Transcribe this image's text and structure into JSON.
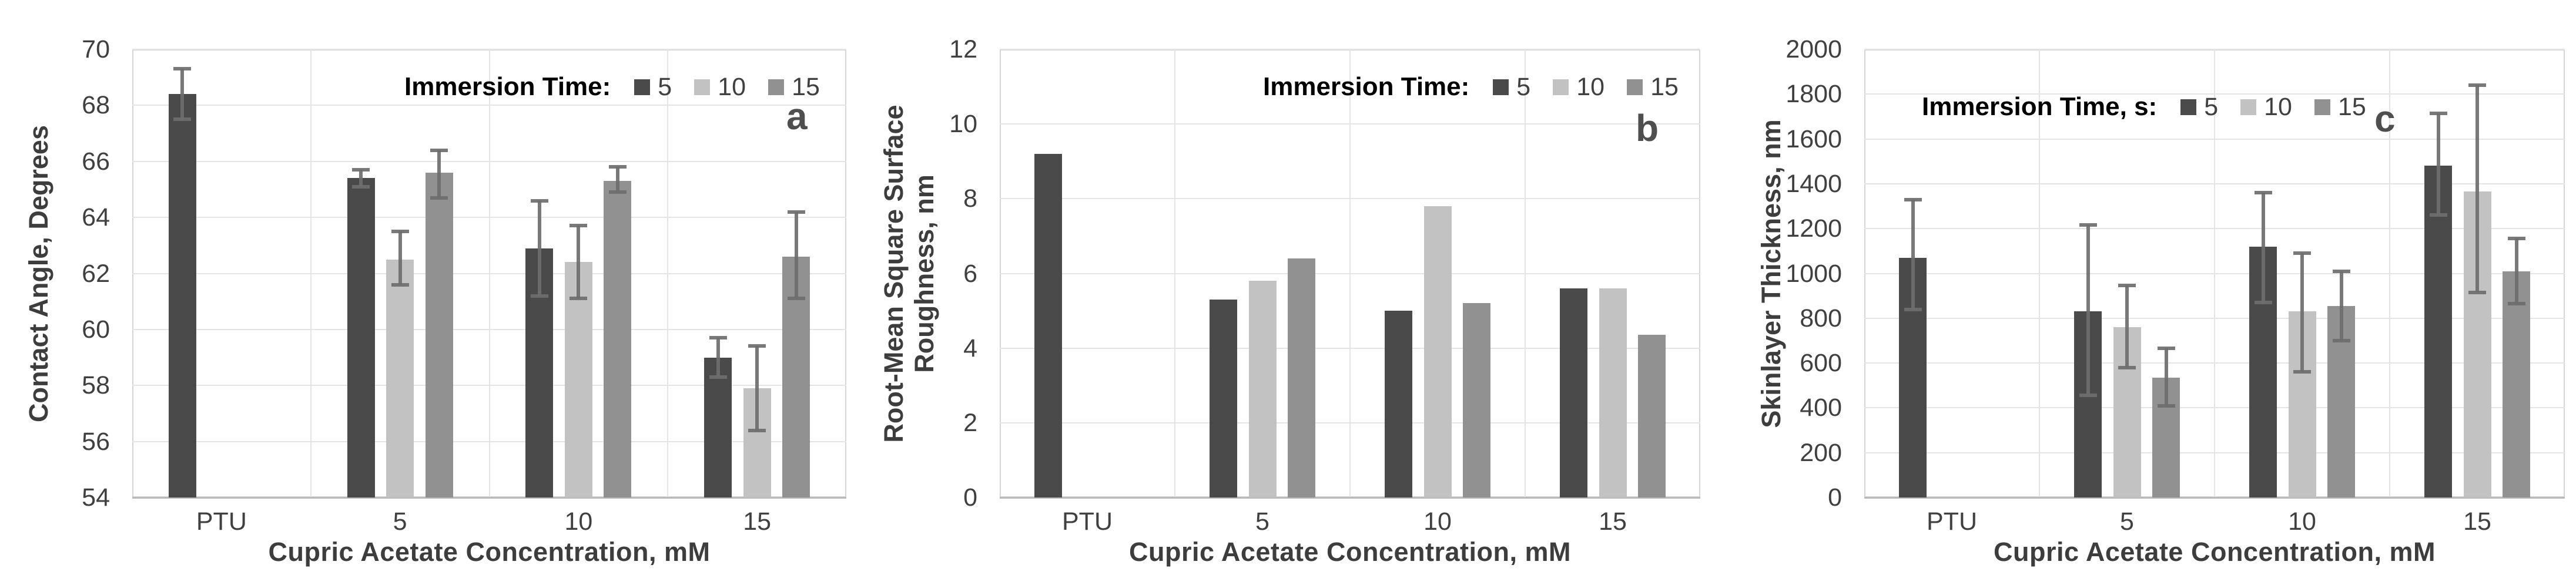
{
  "figure": {
    "background": "#ffffff",
    "colors": {
      "series_5": "#4a4a4a",
      "series_10": "#c2c2c2",
      "series_15": "#919191",
      "error_bar": "#6e6e6e",
      "gridline": "#e4e4e4",
      "plot_border": "#d5d5d5",
      "tick_text": "#404040",
      "axis_title_text": "#3d3d3d",
      "legend_title_text": "#000000",
      "panel_letter_text": "#4f4f4f"
    }
  },
  "chart_data": [
    {
      "type": "bar",
      "panel_letter": "a",
      "title": "",
      "xlabel": "Cupric Acetate Concentration, mM",
      "ylabel": "Contact Angle, Degrees",
      "ylabel_lines": [
        "Contact Angle, Degrees"
      ],
      "legend_title": "Immersion Time:",
      "legend_position": "top-inside",
      "grid": true,
      "ylim": [
        54,
        70
      ],
      "ystep": 2,
      "yticks": [
        "54",
        "56",
        "58",
        "60",
        "62",
        "64",
        "66",
        "68",
        "70"
      ],
      "categories": [
        "PTU",
        "5",
        "10",
        "15"
      ],
      "series": [
        {
          "name": "5",
          "values": [
            68.4,
            65.4,
            62.9,
            59.0
          ],
          "err_lo": [
            67.5,
            65.1,
            61.2,
            58.3
          ],
          "err_hi": [
            69.3,
            65.7,
            64.6,
            59.7
          ]
        },
        {
          "name": "10",
          "values": [
            null,
            62.5,
            62.4,
            57.9
          ],
          "err_lo": [
            null,
            61.6,
            61.1,
            56.4
          ],
          "err_hi": [
            null,
            63.5,
            63.7,
            59.4
          ]
        },
        {
          "name": "15",
          "values": [
            null,
            65.6,
            65.3,
            62.6
          ],
          "err_lo": [
            null,
            64.7,
            64.9,
            61.1
          ],
          "err_hi": [
            null,
            66.4,
            65.8,
            64.2
          ]
        }
      ]
    },
    {
      "type": "bar",
      "panel_letter": "b",
      "title": "",
      "xlabel": "Cupric Acetate Concentration, mM",
      "ylabel": "Root-Mean Square Surface Roughness, nm",
      "ylabel_lines": [
        "Root-Mean Square Surface",
        "Roughness, nm"
      ],
      "legend_title": "Immersion Time:",
      "legend_position": "top-inside",
      "grid": true,
      "ylim": [
        0,
        12
      ],
      "ystep": 2,
      "yticks": [
        "0",
        "2",
        "4",
        "6",
        "8",
        "10",
        "12"
      ],
      "categories": [
        "PTU",
        "5",
        "10",
        "15"
      ],
      "series": [
        {
          "name": "5",
          "values": [
            9.2,
            5.3,
            5.0,
            5.6
          ],
          "err_lo": [
            null,
            null,
            null,
            null
          ],
          "err_hi": [
            null,
            null,
            null,
            null
          ]
        },
        {
          "name": "10",
          "values": [
            null,
            5.8,
            7.8,
            5.6
          ],
          "err_lo": [
            null,
            null,
            null,
            null
          ],
          "err_hi": [
            null,
            null,
            null,
            null
          ]
        },
        {
          "name": "15",
          "values": [
            null,
            6.4,
            5.2,
            4.35
          ],
          "err_lo": [
            null,
            null,
            null,
            null
          ],
          "err_hi": [
            null,
            null,
            null,
            null
          ]
        }
      ]
    },
    {
      "type": "bar",
      "panel_letter": "c",
      "title": "",
      "xlabel": "Cupric Acetate Concentration, mM",
      "ylabel": "Skinlayer Thickness, nm",
      "ylabel_lines": [
        "Skinlayer Thickness, nm"
      ],
      "legend_title": "Immersion Time, s:",
      "legend_position": "top-inside",
      "grid": true,
      "ylim": [
        0,
        2000
      ],
      "ystep": 200,
      "yticks": [
        "0",
        "200",
        "400",
        "600",
        "800",
        "1000",
        "1200",
        "1400",
        "1600",
        "1800",
        "2000"
      ],
      "categories": [
        "PTU",
        "5",
        "10",
        "15"
      ],
      "series": [
        {
          "name": "5",
          "values": [
            1070,
            830,
            1120,
            1480
          ],
          "err_lo": [
            840,
            455,
            870,
            1260
          ],
          "err_hi": [
            1330,
            1215,
            1360,
            1715
          ]
        },
        {
          "name": "10",
          "values": [
            null,
            760,
            830,
            1365
          ],
          "err_lo": [
            null,
            580,
            560,
            915
          ],
          "err_hi": [
            null,
            945,
            1090,
            1840
          ]
        },
        {
          "name": "15",
          "values": [
            null,
            535,
            855,
            1010
          ],
          "err_lo": [
            null,
            410,
            700,
            865
          ],
          "err_hi": [
            null,
            665,
            1010,
            1155
          ]
        }
      ]
    }
  ]
}
